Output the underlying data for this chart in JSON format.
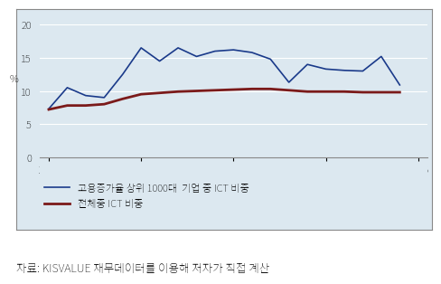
{
  "years_blue": [
    1995,
    1996,
    1997,
    1998,
    1999,
    2000,
    2001,
    2002,
    2003,
    2004,
    2005,
    2006,
    2007,
    2008,
    2009,
    2010,
    2011,
    2012,
    2013,
    2014
  ],
  "blue_values": [
    7.3,
    10.5,
    9.3,
    9.0,
    12.5,
    16.5,
    14.5,
    16.5,
    15.2,
    16.0,
    16.2,
    15.8,
    14.8,
    11.3,
    14.0,
    13.3,
    13.1,
    13.0,
    15.2,
    10.9
  ],
  "years_red": [
    1995,
    1996,
    1997,
    1998,
    1999,
    2000,
    2001,
    2002,
    2003,
    2004,
    2005,
    2006,
    2007,
    2008,
    2009,
    2010,
    2011,
    2012,
    2013,
    2014
  ],
  "red_values": [
    7.2,
    7.8,
    7.8,
    8.0,
    8.8,
    9.5,
    9.7,
    9.9,
    10.0,
    10.1,
    10.2,
    10.3,
    10.3,
    10.1,
    9.9,
    9.9,
    9.9,
    9.8,
    9.8,
    9.8
  ],
  "blue_color": "#1a3a8a",
  "red_color": "#7b1a1a",
  "bg_color": "#dce8f0",
  "ylabel": "%",
  "ylim": [
    0,
    22
  ],
  "yticks": [
    0,
    5,
    10,
    15,
    20
  ],
  "xlim": [
    1994.5,
    2015.5
  ],
  "xticks": [
    1995,
    2000,
    2005,
    2010,
    2015
  ],
  "legend_blue": "고용증가율 상위 1000대  기업 중 ICT 비중",
  "legend_red": "전체중 ICT 비중",
  "caption": "자료: KISVALUE 재무데이터를 이용해 저자가 직접 계산"
}
